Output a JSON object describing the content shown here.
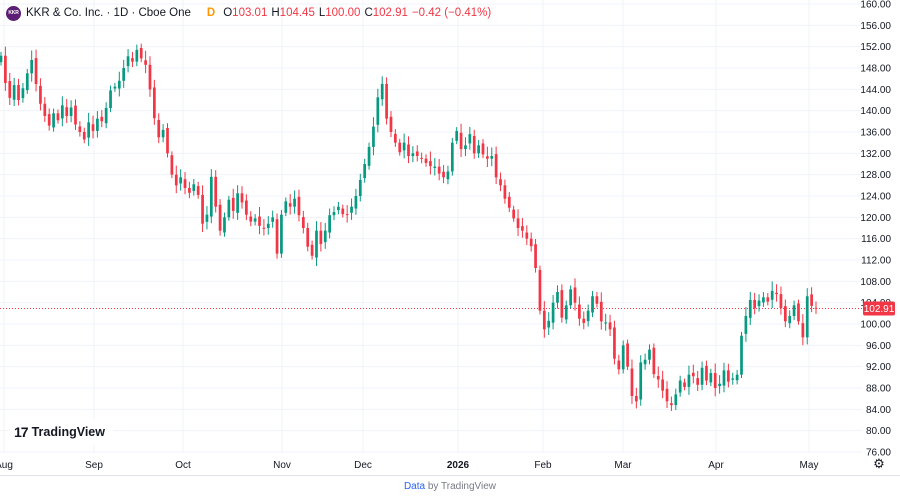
{
  "header": {
    "badge_text": "KKR",
    "title": "KKR & Co. Inc. · 1D · Cboe One",
    "delay_badge": "D",
    "ohlc": [
      {
        "label": "O",
        "value": "103.01"
      },
      {
        "label": "H",
        "value": "104.45"
      },
      {
        "label": "L",
        "value": "100.00"
      },
      {
        "label": "C",
        "value": "102.91"
      }
    ],
    "change": "−0.42 (−0.41%)"
  },
  "branding": {
    "logo_text": "TradingView"
  },
  "footer": {
    "link": "Data",
    "rest": "by TradingView"
  },
  "settings_icon": "gear-icon",
  "colors": {
    "up": "#089981",
    "down": "#f23645",
    "price_line": "#f23645",
    "grid": "#f0f3fa"
  },
  "chart_data": {
    "type": "candlestick",
    "y_axis": {
      "ticks": [
        76,
        80,
        84,
        88,
        92,
        96,
        100,
        104,
        108,
        112,
        116,
        120,
        124,
        128,
        132,
        136,
        140,
        144,
        148,
        152,
        156,
        160
      ],
      "range": [
        76,
        160
      ],
      "position": "right"
    },
    "x_axis": {
      "ticks": [
        "Aug",
        "Sep",
        "Oct",
        "Nov",
        "Dec",
        "2026",
        "Feb",
        "Mar",
        "Apr",
        "May"
      ]
    },
    "last_price": 102.91,
    "closes": [
      150.3,
      145.2,
      142.4,
      144.8,
      142.0,
      144.2,
      147.0,
      149.5,
      145.0,
      141.3,
      139.0,
      137.2,
      139.5,
      138.2,
      141.0,
      139.0,
      140.6,
      137.4,
      136.0,
      134.6,
      137.8,
      136.2,
      138.5,
      138.0,
      140.5,
      143.8,
      144.5,
      145.6,
      148.0,
      150.2,
      149.2,
      151.4,
      149.8,
      148.6,
      144.0,
      138.6,
      135.0,
      136.4,
      132.0,
      128.0,
      126.0,
      127.5,
      125.5,
      124.6,
      126.2,
      124.2,
      118.8,
      120.5,
      127.6,
      122.0,
      117.5,
      120.0,
      123.3,
      121.2,
      124.5,
      122.8,
      120.5,
      119.2,
      119.8,
      118.4,
      118.0,
      118.8,
      120.0,
      113.2,
      120.5,
      123.0,
      122.0,
      123.5,
      120.4,
      118.0,
      114.5,
      112.8,
      117.5,
      115.0,
      117.5,
      120.4,
      121.0,
      122.0,
      120.6,
      120.5,
      122.0,
      124.0,
      127.0,
      130.0,
      133.2,
      137.0,
      142.5,
      145.0,
      138.5,
      136.0,
      134.0,
      132.2,
      134.0,
      131.5,
      132.0,
      131.5,
      131.0,
      130.2,
      129.6,
      129.5,
      128.2,
      127.5,
      128.6,
      134.0,
      136.2,
      132.8,
      133.5,
      135.6,
      132.0,
      133.5,
      131.8,
      131.0,
      131.5,
      127.5,
      126.0,
      123.5,
      121.8,
      119.8,
      118.0,
      117.5,
      116.0,
      114.6,
      110.5,
      102.5,
      99.0,
      100.6,
      104.0,
      106.0,
      101.2,
      103.5,
      106.5,
      104.0,
      101.0,
      100.2,
      102.5,
      105.2,
      103.8,
      100.5,
      100.3,
      99.0,
      93.5,
      91.5,
      96.0,
      92.0,
      86.5,
      85.5,
      92.8,
      93.3,
      95.2,
      90.6,
      89.6,
      87.5,
      85.5,
      84.8,
      86.8,
      89.4,
      88.2,
      90.5,
      90.2,
      88.6,
      91.8,
      89.4,
      90.8,
      88.0,
      88.8,
      91.3,
      89.2,
      89.8,
      90.5,
      97.8,
      101.5,
      104.5,
      103.0,
      104.4,
      105.0,
      104.2,
      106.2,
      105.6,
      103.0,
      100.5,
      101.5,
      103.5,
      100.5,
      97.5,
      105.2,
      103.4,
      102.91
    ]
  }
}
